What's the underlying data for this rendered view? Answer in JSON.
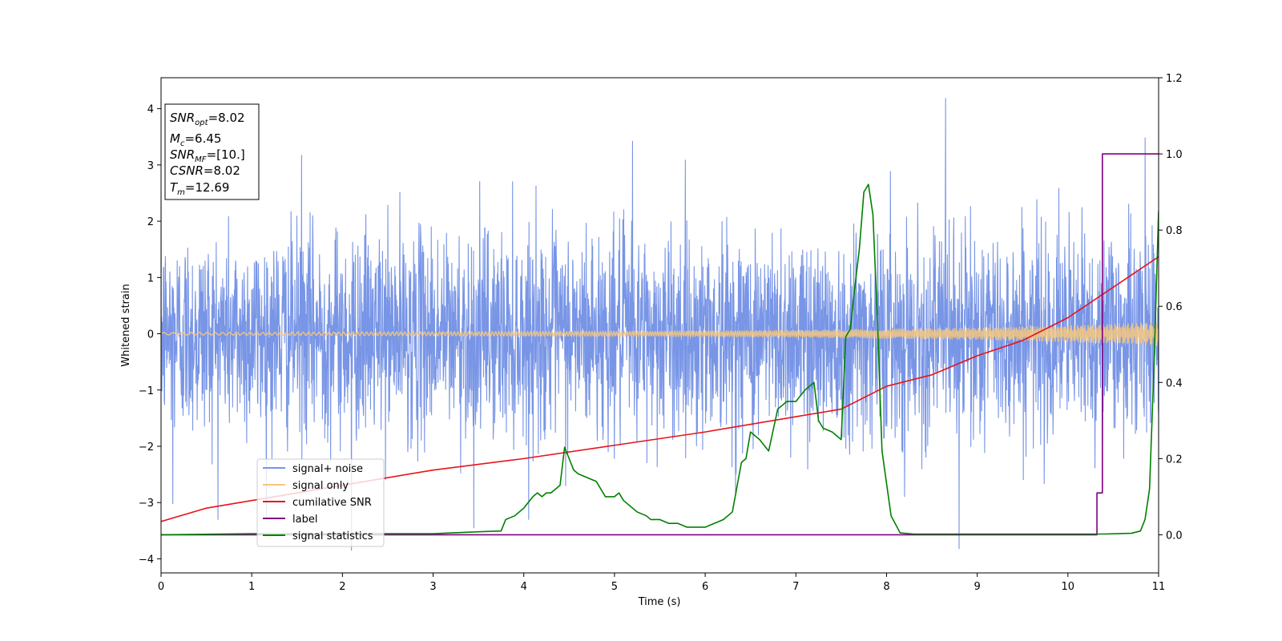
{
  "chart_data": {
    "type": "line",
    "xlabel": "Time (s)",
    "ylabel": "Whitened strain",
    "xlim": [
      0,
      11
    ],
    "ylim": [
      -4.25,
      4.55
    ],
    "y2lim": [
      -0.1,
      1.2
    ],
    "x_ticks": [
      0,
      1,
      2,
      3,
      4,
      5,
      6,
      7,
      8,
      9,
      10,
      11
    ],
    "y_ticks": [
      -4,
      -3,
      -2,
      -1,
      0,
      1,
      2,
      3,
      4
    ],
    "y2_ticks": [
      0.0,
      0.2,
      0.4,
      0.6,
      0.8,
      1.0,
      1.2
    ],
    "tick_labels": {
      "x": [
        "0",
        "1",
        "2",
        "3",
        "4",
        "5",
        "6",
        "7",
        "8",
        "9",
        "10",
        "11"
      ],
      "y": [
        "−4",
        "−3",
        "−2",
        "−1",
        "0",
        "1",
        "2",
        "3",
        "4"
      ],
      "y2": [
        "0.0",
        "0.2",
        "0.4",
        "0.6",
        "0.8",
        "1.0",
        "1.2"
      ]
    },
    "grid": false,
    "legend_position": "lower-left",
    "info_box": {
      "lines": [
        {
          "var": "SNR",
          "sub": "opt",
          "value": "=8.02"
        },
        {
          "var": "M",
          "sub": "c",
          "value": "=6.45"
        },
        {
          "var": "SNR",
          "sub": "MF",
          "value": "=[10.]"
        },
        {
          "var": "CSNR",
          "sub": "",
          "value": "=8.02"
        },
        {
          "var": "T",
          "sub": "m",
          "value": "=12.69"
        }
      ]
    },
    "series": [
      {
        "name": "signal+ noise",
        "axis": "left",
        "color": "#7895e6",
        "style": "dense-noise",
        "noise_std": 0.9,
        "notable_peaks": [
          {
            "x": 8.65,
            "y": 4.18
          },
          {
            "x": 10.85,
            "y": 3.48
          },
          {
            "x": 1.55,
            "y": 3.17
          },
          {
            "x": 5.2,
            "y": 3.42
          },
          {
            "x": 8.8,
            "y": -3.82
          },
          {
            "x": 2.1,
            "y": -3.85
          },
          {
            "x": 3.45,
            "y": -3.45
          },
          {
            "x": 0.13,
            "y": -3.02
          }
        ]
      },
      {
        "name": "signal only",
        "axis": "left",
        "color": "#f5c77e",
        "style": "chirp",
        "x": [
          0,
          2,
          4,
          6,
          7,
          8,
          9,
          10,
          11
        ],
        "amplitude": [
          0.02,
          0.03,
          0.04,
          0.05,
          0.06,
          0.08,
          0.1,
          0.14,
          0.2
        ]
      },
      {
        "name": "cumilative SNR",
        "axis": "right",
        "color": "#e8131a",
        "x": [
          0,
          0.5,
          1,
          2,
          3,
          4,
          5,
          6,
          7,
          7.5,
          8,
          8.5,
          9,
          9.5,
          10,
          10.5,
          11
        ],
        "y": [
          0.035,
          0.07,
          0.09,
          0.13,
          0.17,
          0.2,
          0.235,
          0.27,
          0.31,
          0.33,
          0.39,
          0.42,
          0.47,
          0.51,
          0.57,
          0.65,
          0.73
        ]
      },
      {
        "name": "label",
        "axis": "right",
        "color": "#800080",
        "x": [
          0,
          10.32,
          10.32,
          10.38,
          10.38,
          11
        ],
        "y": [
          0,
          0,
          0.11,
          0.11,
          1.0,
          1.0
        ]
      },
      {
        "name": "signal statistics",
        "axis": "right",
        "color": "#008000",
        "x": [
          0,
          1,
          2,
          3,
          3.5,
          3.75,
          3.8,
          3.9,
          4.0,
          4.1,
          4.15,
          4.2,
          4.25,
          4.3,
          4.4,
          4.45,
          4.5,
          4.55,
          4.6,
          4.7,
          4.8,
          4.85,
          4.9,
          5.0,
          5.05,
          5.1,
          5.15,
          5.25,
          5.35,
          5.4,
          5.5,
          5.6,
          5.7,
          5.8,
          5.9,
          6.0,
          6.1,
          6.2,
          6.3,
          6.4,
          6.45,
          6.5,
          6.6,
          6.7,
          6.8,
          6.9,
          7.0,
          7.1,
          7.15,
          7.2,
          7.25,
          7.3,
          7.4,
          7.5,
          7.55,
          7.6,
          7.65,
          7.7,
          7.75,
          7.8,
          7.85,
          7.9,
          7.95,
          8.05,
          8.15,
          8.3,
          9.0,
          9.5,
          10.0,
          10.4,
          10.7,
          10.8,
          10.85,
          10.9,
          10.95,
          11.0
        ],
        "y": [
          0,
          0.003,
          0.003,
          0.003,
          0.008,
          0.01,
          0.04,
          0.05,
          0.07,
          0.1,
          0.11,
          0.1,
          0.11,
          0.11,
          0.13,
          0.23,
          0.2,
          0.17,
          0.16,
          0.15,
          0.14,
          0.12,
          0.1,
          0.1,
          0.11,
          0.09,
          0.08,
          0.06,
          0.05,
          0.04,
          0.04,
          0.03,
          0.03,
          0.02,
          0.02,
          0.02,
          0.03,
          0.04,
          0.06,
          0.19,
          0.2,
          0.27,
          0.25,
          0.22,
          0.33,
          0.35,
          0.35,
          0.38,
          0.39,
          0.4,
          0.3,
          0.28,
          0.27,
          0.25,
          0.52,
          0.54,
          0.65,
          0.75,
          0.9,
          0.92,
          0.84,
          0.56,
          0.22,
          0.05,
          0.005,
          0.002,
          0.002,
          0.002,
          0.002,
          0.002,
          0.004,
          0.01,
          0.04,
          0.12,
          0.45,
          0.85
        ]
      }
    ]
  }
}
